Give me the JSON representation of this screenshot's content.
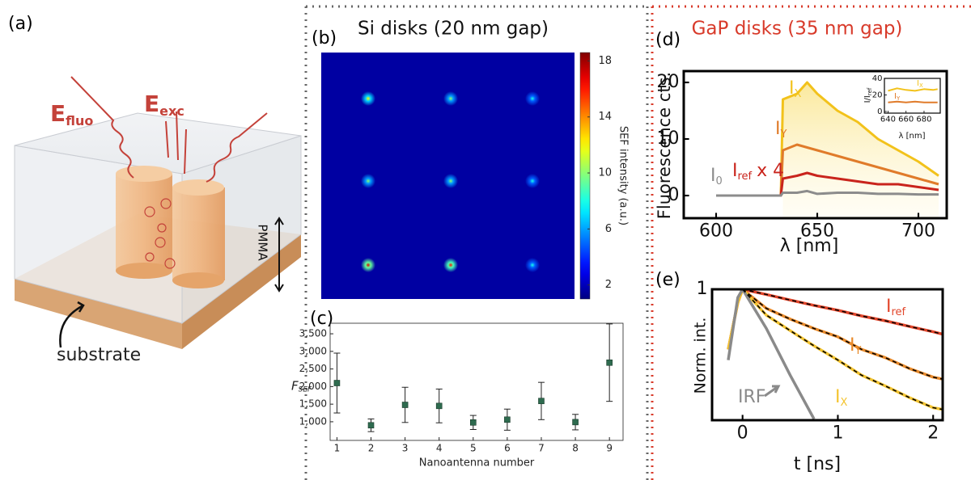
{
  "panel_labels": [
    "(a)",
    "(b)",
    "(c)",
    "(d)",
    "(e)"
  ],
  "headers": {
    "si": "Si disks (20 nm gap)",
    "gap": "GaP disks (35 nm gap)"
  },
  "diagram": {
    "e_fluo": {
      "main": "E",
      "sub": "fluo"
    },
    "e_exc": {
      "main": "E",
      "sub": "exc"
    },
    "pmma": "PMMA",
    "substrate": "substrate"
  },
  "chart_data": [
    {
      "type": "heatmap",
      "colorbar_label": "SEF intensity (a.u.)",
      "values": [
        [
          12,
          10,
          8
        ],
        [
          10,
          10,
          8
        ],
        [
          17,
          16,
          8
        ]
      ],
      "background": 1.6,
      "clim": [
        1,
        18.6
      ],
      "cticks": [
        2,
        6,
        10,
        14,
        18
      ],
      "colormap": "jet"
    },
    {
      "type": "errorbar",
      "ylabel": {
        "main": "F",
        "sub": "SEF"
      },
      "xlabel": "Nanoantenna number",
      "x": [
        1,
        2,
        3,
        4,
        5,
        6,
        7,
        8,
        9
      ],
      "values": [
        2100,
        900,
        1480,
        1450,
        980,
        1060,
        1590,
        990,
        2680
      ],
      "errors": [
        850,
        180,
        500,
        480,
        200,
        300,
        530,
        220,
        1100
      ],
      "color": "#2e6b4f",
      "xlim": [
        0.8,
        9.4
      ],
      "ylim": [
        470,
        3800
      ],
      "xticks": [
        1,
        2,
        3,
        4,
        5,
        6,
        7,
        8,
        9
      ],
      "yticks": [
        {
          "value": 1000,
          "label": "1,000"
        },
        {
          "value": 1500,
          "label": "1,500"
        },
        {
          "value": 2000,
          "label": "2,000"
        },
        {
          "value": 2500,
          "label": "2,500"
        },
        {
          "value": 3000,
          "label": "3,000"
        },
        {
          "value": 3500,
          "label": "3,500"
        }
      ]
    },
    {
      "type": "line",
      "ylabel": "Fluorescence cts.",
      "xlabel": "λ [nm]",
      "x": [
        600,
        620,
        632,
        633,
        640,
        645,
        650,
        660,
        670,
        680,
        690,
        700,
        710
      ],
      "series": [
        {
          "name": "I",
          "name_sub": "X",
          "color": "#f2c21b",
          "fill_under": true,
          "values": [
            0,
            0,
            0,
            17,
            18,
            20,
            18,
            15,
            13,
            10,
            8,
            6,
            3.5
          ]
        },
        {
          "name": "I",
          "name_sub": "Y",
          "color": "#e07b2a",
          "values": [
            0,
            0,
            0,
            8,
            9,
            8.5,
            8,
            7,
            6,
            5,
            4,
            3,
            2
          ]
        },
        {
          "name": "I",
          "name_sub": "ref",
          "name_suffix": "x 4",
          "color": "#c9241c",
          "values": [
            0,
            0,
            0,
            3,
            3.5,
            4,
            3.5,
            3,
            2.5,
            2,
            2,
            1.5,
            1
          ]
        },
        {
          "name": "I",
          "name_sub": "0",
          "color": "#8c8c8c",
          "values": [
            0,
            0,
            0,
            0.5,
            0.5,
            0.8,
            0.3,
            0.5,
            0.5,
            0.3,
            0.3,
            0.2,
            0.2
          ]
        }
      ],
      "xlim": [
        584,
        714
      ],
      "ylim": [
        -4,
        22
      ],
      "xticks": [
        600,
        650,
        700
      ],
      "yticks": [
        0,
        10,
        20
      ]
    },
    {
      "type": "line",
      "ylabel": {
        "main": "I/I",
        "sub": "ref"
      },
      "xlabel": "λ [nm]",
      "x": [
        640,
        650,
        660,
        670,
        680,
        690,
        695
      ],
      "series": [
        {
          "name": "I",
          "name_sub": "X",
          "color": "#f2c21b",
          "values": [
            25,
            28,
            26,
            25,
            27,
            26,
            27
          ]
        },
        {
          "name": "I",
          "name_sub": "Y",
          "color": "#e07b2a",
          "values": [
            11,
            12,
            11,
            12,
            11,
            11,
            11
          ]
        }
      ],
      "xlim": [
        636,
        698
      ],
      "ylim": [
        -2,
        40
      ],
      "xticks": [
        640,
        660,
        680
      ],
      "yticks": [
        0,
        20,
        40
      ]
    },
    {
      "type": "line",
      "ylabel": "Norm. int.",
      "xlabel": "t [ns]",
      "log_y": true,
      "x": [
        -0.15,
        -0.05,
        0,
        0.25,
        0.5,
        0.75,
        1,
        1.25,
        1.5,
        1.75,
        2,
        2.1
      ],
      "series": [
        {
          "name": "I",
          "name_sub": "ref",
          "color": "#e2452a",
          "values": [
            0.2,
            0.7,
            1,
            0.87,
            0.75,
            0.65,
            0.57,
            0.49,
            0.43,
            0.37,
            0.32,
            0.3
          ]
        },
        {
          "name": "I",
          "name_sub": "Y",
          "color": "#e98a2a",
          "values": [
            0.2,
            0.7,
            1,
            0.6,
            0.45,
            0.35,
            0.28,
            0.2,
            0.16,
            0.12,
            0.095,
            0.09
          ]
        },
        {
          "name": "I",
          "name_sub": "X",
          "color": "#f4c430",
          "values": [
            0.2,
            0.7,
            1,
            0.5,
            0.33,
            0.22,
            0.15,
            0.1,
            0.075,
            0.055,
            0.042,
            0.04
          ]
        },
        {
          "name": "IRF",
          "color": "#8a8a8a",
          "values": [
            0.15,
            0.8,
            1,
            0.35,
            0.1,
            0.031,
            null,
            null,
            null,
            null,
            null,
            null
          ]
        },
        {
          "color": "#000000",
          "style": "dashed",
          "values": [
            null,
            null,
            1,
            0.87,
            0.75,
            0.65,
            0.57,
            0.49,
            0.43,
            0.37,
            0.32,
            0.3
          ]
        },
        {
          "color": "#000000",
          "style": "dashed",
          "values": [
            null,
            null,
            1,
            0.6,
            0.45,
            0.35,
            0.28,
            0.2,
            0.16,
            0.12,
            0.095,
            0.09
          ]
        },
        {
          "color": "#000000",
          "style": "dashed",
          "values": [
            null,
            null,
            1,
            0.5,
            0.33,
            0.22,
            0.15,
            0.1,
            0.075,
            0.055,
            0.042,
            0.04
          ]
        }
      ],
      "xlim": [
        -0.32,
        2.1
      ],
      "ylim": [
        0.03,
        1
      ],
      "xticks": [
        0,
        1,
        2
      ],
      "yticks": [
        1
      ]
    }
  ]
}
